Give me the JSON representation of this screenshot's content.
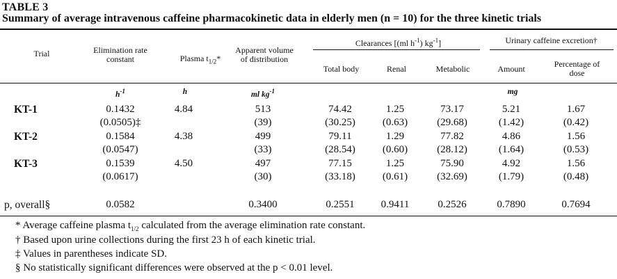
{
  "table": {
    "label": "TABLE 3",
    "caption": "Summary of average intravenous caffeine pharmacokinetic data in elderly men (n = 10) for the three kinetic trials",
    "headers": {
      "trial": "Trial",
      "elim_rate": "Elimination rate constant",
      "plasma_half": "Plasma t",
      "plasma_half_sub": "1/2",
      "plasma_half_mark": "*",
      "volume": "Apparent volume of distribution",
      "clearances_group": "Clearances [(ml h",
      "clearances_sup1": "-1",
      "clearances_mid": ") kg",
      "clearances_sup2": "-1",
      "clearances_end": "]",
      "total_body": "Total body",
      "renal": "Renal",
      "metabolic": "Metabolic",
      "urinary_group": "Urinary caffeine excretion†",
      "amount": "Amount",
      "percentage": "Percentage of dose"
    },
    "units": {
      "elim_rate": "h",
      "elim_rate_sup": "-1",
      "plasma_half": "h",
      "volume": "ml kg",
      "volume_sup": "-1",
      "amount": "mg"
    },
    "rows": [
      {
        "label": "KT-1",
        "mean": [
          "0.1432",
          "4.84",
          "513",
          "74.42",
          "1.25",
          "73.17",
          "5.21",
          "1.67"
        ],
        "sd": [
          "(0.0505)‡",
          "",
          "(39)",
          "(30.25)",
          "(0.63)",
          "(29.68)",
          "(1.42)",
          "(0.42)"
        ]
      },
      {
        "label": "KT-2",
        "mean": [
          "0.1584",
          "4.38",
          "499",
          "79.11",
          "1.29",
          "77.82",
          "4.86",
          "1.56"
        ],
        "sd": [
          "(0.0547)",
          "",
          "(33)",
          "(28.54)",
          "(0.60)",
          "(28.12)",
          "(1.64)",
          "(0.53)"
        ]
      },
      {
        "label": "KT-3",
        "mean": [
          "0.1539",
          "4.50",
          "497",
          "77.15",
          "1.25",
          "75.90",
          "4.92",
          "1.56"
        ],
        "sd": [
          "(0.0617)",
          "",
          "(30)",
          "(33.18)",
          "(0.61)",
          "(32.69)",
          "(1.79)",
          "(0.48)"
        ]
      }
    ],
    "p_row": {
      "label": "p, overall§",
      "values": [
        "0.0582",
        "",
        "0.3400",
        "0.2551",
        "0.9411",
        "0.2526",
        "0.7890",
        "0.7694"
      ]
    },
    "footnotes": {
      "star_a": "* Average caffeine plasma t",
      "star_sub": "1/2",
      "star_b": " calculated from the average elimination rate constant.",
      "dagger": "† Based upon urine collections during the first 23 h of each kinetic trial.",
      "ddagger": "‡ Values in parentheses indicate SD.",
      "section": "§ No statistically significant differences were observed at the p < 0.01 level."
    }
  }
}
